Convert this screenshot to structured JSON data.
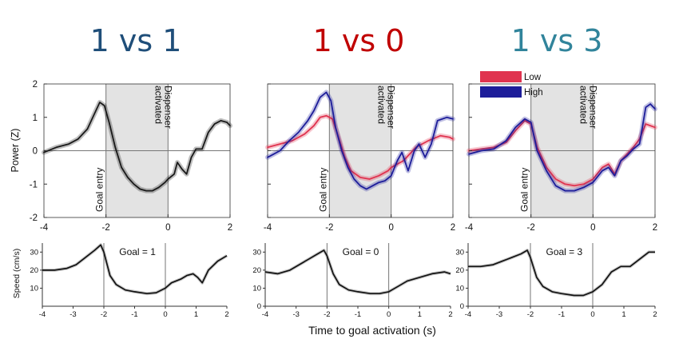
{
  "figure": {
    "xlabel": "Time to goal activation (s)"
  },
  "legend": {
    "low_label": "Low",
    "high_label": "High",
    "low_color": "#e0334f",
    "high_color": "#1d1d9a"
  },
  "annotations": {
    "entry": "Goal entry",
    "activated": "Dispenser activated"
  },
  "colors": {
    "title_left": "#1f4e79",
    "title_middle": "#c00000",
    "title_right": "#31849b",
    "trace": "#1a1a1a",
    "shade": "#e3e3e3"
  },
  "chart_data": [
    {
      "type": "line",
      "panel": "power",
      "title": "1 vs 1",
      "ylabel": "Power (Z)",
      "xlim": [
        -4,
        2
      ],
      "ylim": [
        -2,
        2
      ],
      "xticks": [
        -4,
        -2,
        0,
        2
      ],
      "yticks": [
        -2,
        -1,
        0,
        1,
        2
      ],
      "shaded_interval": [
        -2,
        0
      ],
      "series": [
        {
          "x": [
            -4,
            -3.6,
            -3.2,
            -2.9,
            -2.6,
            -2.4,
            -2.2,
            -2.05,
            -1.9,
            -1.7,
            -1.5,
            -1.3,
            -1.1,
            -0.9,
            -0.7,
            -0.5,
            -0.3,
            -0.1,
            0,
            0.2,
            0.3,
            0.45,
            0.6,
            0.75,
            0.9,
            1.1,
            1.3,
            1.5,
            1.7,
            1.9,
            2
          ],
          "y": [
            -0.05,
            0.1,
            0.2,
            0.35,
            0.65,
            1.05,
            1.45,
            1.35,
            0.85,
            0.1,
            -0.5,
            -0.8,
            -1.0,
            -1.15,
            -1.2,
            -1.2,
            -1.1,
            -0.95,
            -0.85,
            -0.7,
            -0.35,
            -0.55,
            -0.7,
            -0.2,
            0.05,
            0.05,
            0.55,
            0.8,
            0.9,
            0.85,
            0.75
          ]
        }
      ]
    },
    {
      "type": "line",
      "panel": "speed",
      "ylabel": "Speed (cm/s)",
      "annotation": "Goal = 1",
      "xlim": [
        -4,
        2
      ],
      "ylim": [
        0,
        35
      ],
      "xticks": [
        -4,
        -3,
        -2,
        -1,
        0,
        1,
        2
      ],
      "yticks": [
        10,
        20,
        30
      ],
      "marker_x": [
        -2,
        0
      ],
      "series": [
        {
          "x": [
            -4,
            -3.6,
            -3.2,
            -2.9,
            -2.6,
            -2.3,
            -2.1,
            -2,
            -1.8,
            -1.6,
            -1.3,
            -1,
            -0.6,
            -0.3,
            0,
            0.2,
            0.5,
            0.7,
            0.9,
            1.05,
            1.2,
            1.4,
            1.7,
            2
          ],
          "y": [
            20,
            20,
            21,
            23,
            27,
            31,
            34,
            30,
            17,
            12,
            9,
            8,
            7,
            7.5,
            10,
            13,
            15,
            17,
            18,
            16,
            13,
            20,
            25,
            28
          ]
        }
      ]
    },
    {
      "type": "line",
      "panel": "power",
      "title": "1 vs 0",
      "xlim": [
        -4,
        2
      ],
      "ylim": [
        -2,
        2
      ],
      "xticks": [
        -4,
        -2,
        0,
        2
      ],
      "yticks": [
        -2,
        -1,
        0,
        1,
        2
      ],
      "shaded_interval": [
        -2,
        0
      ],
      "series": [
        {
          "name": "Low",
          "x": [
            -4,
            -3.6,
            -3.2,
            -2.8,
            -2.5,
            -2.3,
            -2.1,
            -1.9,
            -1.7,
            -1.5,
            -1.3,
            -1.0,
            -0.7,
            -0.4,
            -0.1,
            0,
            0.4,
            0.8,
            1.2,
            1.6,
            1.9,
            2
          ],
          "y": [
            0.1,
            0.2,
            0.3,
            0.5,
            0.75,
            1.0,
            1.05,
            0.95,
            0.4,
            -0.2,
            -0.6,
            -0.8,
            -0.85,
            -0.75,
            -0.6,
            -0.5,
            -0.3,
            0.1,
            0.3,
            0.45,
            0.4,
            0.35
          ]
        },
        {
          "name": "High",
          "x": [
            -4,
            -3.8,
            -3.6,
            -3.3,
            -3.0,
            -2.7,
            -2.5,
            -2.3,
            -2.1,
            -1.95,
            -1.8,
            -1.6,
            -1.4,
            -1.2,
            -1.0,
            -0.8,
            -0.6,
            -0.4,
            -0.2,
            0,
            0.2,
            0.35,
            0.55,
            0.75,
            0.9,
            1.1,
            1.3,
            1.5,
            1.8,
            2
          ],
          "y": [
            -0.2,
            -0.1,
            0.0,
            0.3,
            0.55,
            0.9,
            1.2,
            1.6,
            1.75,
            1.5,
            0.7,
            0.0,
            -0.5,
            -0.85,
            -1.05,
            -1.15,
            -1.05,
            -0.95,
            -0.9,
            -0.75,
            -0.3,
            -0.05,
            -0.6,
            0.0,
            0.2,
            -0.2,
            0.2,
            0.9,
            1.0,
            0.95
          ]
        }
      ]
    },
    {
      "type": "line",
      "panel": "speed",
      "annotation": "Goal = 0",
      "xlim": [
        -4,
        2
      ],
      "ylim": [
        0,
        35
      ],
      "xticks": [
        -4,
        -3,
        -2,
        -1,
        0,
        1,
        2
      ],
      "yticks": [
        0,
        10,
        20,
        30
      ],
      "marker_x": [
        -2,
        0
      ],
      "series": [
        {
          "x": [
            -4,
            -3.6,
            -3.2,
            -2.9,
            -2.6,
            -2.3,
            -2.1,
            -2,
            -1.8,
            -1.6,
            -1.3,
            -1,
            -0.6,
            -0.3,
            0,
            0.3,
            0.6,
            1,
            1.4,
            1.8,
            2
          ],
          "y": [
            19,
            18,
            20,
            23,
            26,
            29,
            31,
            28,
            18,
            12,
            9,
            8,
            7,
            7,
            8,
            11,
            14,
            16,
            18,
            19,
            18
          ]
        }
      ]
    },
    {
      "type": "line",
      "panel": "power",
      "title": "1 vs 3",
      "xlim": [
        -4,
        2
      ],
      "ylim": [
        -2,
        2
      ],
      "xticks": [
        -4,
        -2,
        0,
        2
      ],
      "yticks": [
        -2,
        -1,
        0,
        1,
        2
      ],
      "shaded_interval": [
        -2,
        0
      ],
      "series": [
        {
          "name": "Low",
          "x": [
            -4,
            -3.6,
            -3.2,
            -2.8,
            -2.5,
            -2.2,
            -2.0,
            -1.8,
            -1.5,
            -1.2,
            -0.9,
            -0.6,
            -0.3,
            0,
            0.3,
            0.5,
            0.7,
            0.9,
            1.1,
            1.3,
            1.5,
            1.7,
            2
          ],
          "y": [
            0.0,
            0.05,
            0.1,
            0.25,
            0.6,
            0.9,
            0.8,
            0.1,
            -0.5,
            -0.85,
            -1.0,
            -1.05,
            -1.0,
            -0.85,
            -0.5,
            -0.4,
            -0.7,
            -0.3,
            -0.1,
            0.1,
            0.35,
            0.8,
            0.7
          ]
        },
        {
          "name": "High",
          "x": [
            -4,
            -3.6,
            -3.2,
            -2.8,
            -2.5,
            -2.2,
            -2.0,
            -1.8,
            -1.5,
            -1.2,
            -0.9,
            -0.6,
            -0.3,
            0,
            0.3,
            0.5,
            0.7,
            0.9,
            1.1,
            1.3,
            1.5,
            1.7,
            1.85,
            2
          ],
          "y": [
            -0.1,
            0.0,
            0.05,
            0.3,
            0.7,
            0.95,
            0.85,
            0.0,
            -0.6,
            -1.05,
            -1.2,
            -1.2,
            -1.1,
            -0.95,
            -0.6,
            -0.5,
            -0.75,
            -0.3,
            -0.15,
            0.05,
            0.2,
            1.3,
            1.4,
            1.25
          ]
        }
      ]
    },
    {
      "type": "line",
      "panel": "speed",
      "annotation": "Goal = 3",
      "xlim": [
        -4,
        2
      ],
      "ylim": [
        0,
        35
      ],
      "xticks": [
        -4,
        -3,
        -2,
        -1,
        0,
        1,
        2
      ],
      "yticks": [
        0,
        10,
        20,
        30
      ],
      "marker_x": [
        -2,
        0
      ],
      "series": [
        {
          "x": [
            -4,
            -3.6,
            -3.2,
            -2.9,
            -2.6,
            -2.3,
            -2.1,
            -2,
            -1.8,
            -1.6,
            -1.3,
            -1,
            -0.6,
            -0.3,
            0,
            0.3,
            0.6,
            0.9,
            1.2,
            1.5,
            1.8,
            2
          ],
          "y": [
            22,
            22,
            23,
            25,
            27,
            29,
            31,
            27,
            16,
            11,
            8,
            7,
            6,
            6,
            8,
            12,
            19,
            22,
            22,
            26,
            30,
            30
          ]
        }
      ]
    }
  ]
}
